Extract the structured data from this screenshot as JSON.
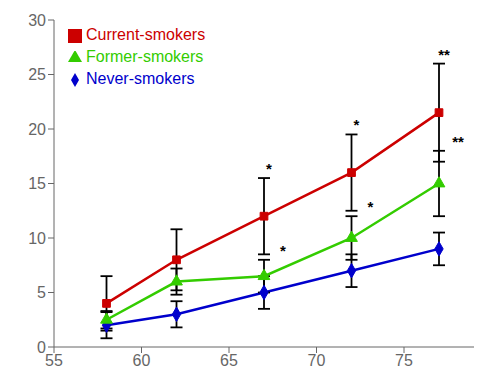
{
  "chart_data": {
    "type": "line",
    "x": [
      58,
      62,
      67,
      72,
      77
    ],
    "series": [
      {
        "name": "Never-smokers",
        "color": "#0000cc",
        "marker": "diamond",
        "values": [
          2.0,
          3.0,
          5.0,
          7.0,
          9.0
        ],
        "errors": [
          1.2,
          1.2,
          1.5,
          1.5,
          1.5
        ]
      },
      {
        "name": "Current-smokers",
        "color": "#cc0000",
        "marker": "square",
        "values": [
          4.0,
          8.0,
          12.0,
          16.0,
          21.5
        ],
        "errors": [
          2.5,
          2.8,
          3.5,
          3.5,
          4.5
        ],
        "significance": [
          null,
          null,
          "*",
          "*",
          "**"
        ]
      },
      {
        "name": "Former-smokers",
        "color": "#33cc00",
        "marker": "triangle",
        "values": [
          2.5,
          6.0,
          6.5,
          10.0,
          15.0
        ],
        "errors": [
          0.8,
          1.2,
          1.5,
          2.0,
          3.0
        ],
        "significance": [
          null,
          null,
          "*",
          "*",
          "**"
        ]
      }
    ],
    "xlim": [
      55,
      79
    ],
    "ylim": [
      0,
      30
    ],
    "xticks": [
      55,
      60,
      65,
      70,
      75
    ],
    "yticks": [
      0,
      5,
      10,
      15,
      20,
      25,
      30
    ],
    "legend": "upper left",
    "grid": false
  }
}
